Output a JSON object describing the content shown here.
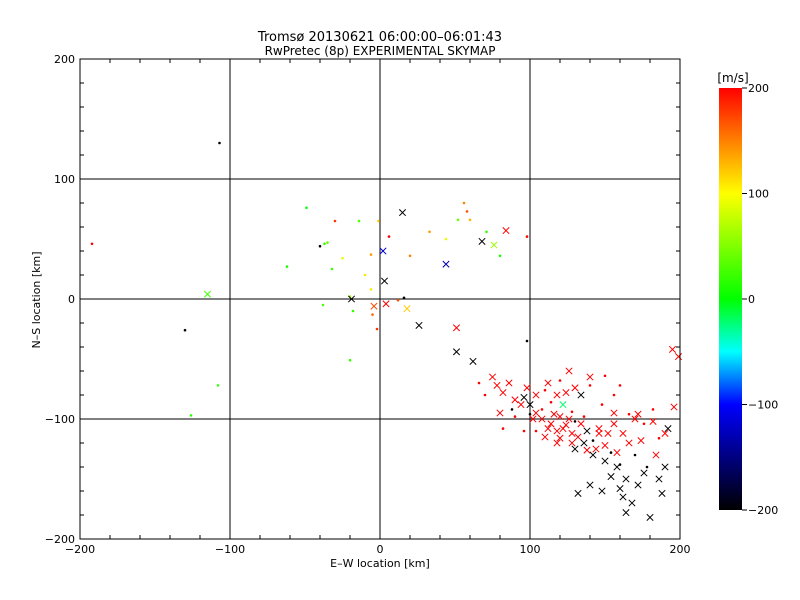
{
  "chart_data": {
    "type": "scatter",
    "title": "Tromsø 20130621 06:00:00–06:01:43",
    "subtitle": "RwPretec (8p) EXPERIMENTAL SKYMAP",
    "xlabel": "E–W location [km]",
    "ylabel": "N–S location [km]",
    "xlim": [
      -200,
      200
    ],
    "ylim": [
      -200,
      200
    ],
    "xticks": [
      "−200",
      "−100",
      "0",
      "100",
      "200"
    ],
    "yticks": [
      "−200",
      "−100",
      "0",
      "100",
      "200"
    ],
    "grid_lines_at": [
      -100,
      0,
      100
    ],
    "colorbar": {
      "label": "[m/s]",
      "range": [
        -200,
        200
      ],
      "ticks": [
        "200",
        "100",
        "0",
        "−100",
        "−200"
      ]
    },
    "points": [
      [
        -107,
        130,
        -200,
        "dot"
      ],
      [
        -192,
        46,
        200,
        "dot"
      ],
      [
        -49,
        76,
        0,
        "dot"
      ],
      [
        -62,
        27,
        10,
        "dot"
      ],
      [
        -35,
        47,
        40,
        "dot"
      ],
      [
        -30,
        65,
        180,
        "dot"
      ],
      [
        -37,
        46,
        20,
        "dot"
      ],
      [
        -40,
        44,
        -200,
        "dot"
      ],
      [
        -32,
        25,
        25,
        "dot"
      ],
      [
        -25,
        34,
        90,
        "dot"
      ],
      [
        -14,
        65,
        30,
        "dot"
      ],
      [
        -1,
        65,
        120,
        "dot"
      ],
      [
        15,
        72,
        -200,
        "cross"
      ],
      [
        2,
        40,
        -120,
        "cross"
      ],
      [
        6,
        52,
        200,
        "dot"
      ],
      [
        -6,
        37,
        140,
        "dot"
      ],
      [
        -10,
        20,
        110,
        "dot"
      ],
      [
        -6,
        8,
        110,
        "dot"
      ],
      [
        3,
        15,
        -200,
        "cross"
      ],
      [
        -20,
        2,
        60,
        "dot"
      ],
      [
        -38,
        -5,
        30,
        "dot"
      ],
      [
        -18,
        -10,
        20,
        "dot"
      ],
      [
        -20,
        -51,
        20,
        "dot"
      ],
      [
        -4,
        -6,
        170,
        "cross"
      ],
      [
        -5,
        -13,
        160,
        "dot"
      ],
      [
        -2,
        -25,
        180,
        "dot"
      ],
      [
        4,
        -4,
        200,
        "cross"
      ],
      [
        12,
        -1,
        170,
        "dot"
      ],
      [
        18,
        -8,
        120,
        "cross"
      ],
      [
        16,
        1,
        -200,
        "dot"
      ],
      [
        -19,
        0,
        -200,
        "cross"
      ],
      [
        -115,
        4,
        25,
        "cross"
      ],
      [
        -130,
        -26,
        -200,
        "dot"
      ],
      [
        -108,
        -72,
        20,
        "dot"
      ],
      [
        -126,
        -97,
        15,
        "dot"
      ],
      [
        20,
        36,
        150,
        "dot"
      ],
      [
        33,
        56,
        140,
        "dot"
      ],
      [
        44,
        50,
        90,
        "dot"
      ],
      [
        44,
        29,
        -130,
        "cross"
      ],
      [
        52,
        66,
        40,
        "dot"
      ],
      [
        56,
        80,
        150,
        "dot"
      ],
      [
        58,
        73,
        170,
        "dot"
      ],
      [
        60,
        66,
        130,
        "dot"
      ],
      [
        68,
        48,
        -200,
        "cross"
      ],
      [
        71,
        56,
        20,
        "dot"
      ],
      [
        76,
        45,
        60,
        "cross"
      ],
      [
        80,
        36,
        10,
        "dot"
      ],
      [
        84,
        57,
        200,
        "cross"
      ],
      [
        98,
        52,
        200,
        "dot"
      ],
      [
        26,
        -22,
        -200,
        "cross"
      ],
      [
        51,
        -24,
        200,
        "cross"
      ],
      [
        51,
        -44,
        -200,
        "cross"
      ],
      [
        62,
        -52,
        -200,
        "cross"
      ],
      [
        75,
        -65,
        200,
        "cross"
      ],
      [
        78,
        -72,
        200,
        "cross"
      ],
      [
        82,
        -78,
        200,
        "cross"
      ],
      [
        86,
        -70,
        200,
        "cross"
      ],
      [
        90,
        -84,
        200,
        "cross"
      ],
      [
        96,
        -82,
        -200,
        "cross"
      ],
      [
        98,
        -35,
        -200,
        "dot"
      ],
      [
        100,
        -88,
        -200,
        "cross"
      ],
      [
        104,
        -95,
        200,
        "cross"
      ],
      [
        108,
        -100,
        200,
        "cross"
      ],
      [
        112,
        -70,
        200,
        "cross"
      ],
      [
        114,
        -104,
        200,
        "cross"
      ],
      [
        118,
        -110,
        200,
        "cross"
      ],
      [
        120,
        -98,
        200,
        "cross"
      ],
      [
        122,
        -88,
        -20,
        "cross"
      ],
      [
        124,
        -105,
        200,
        "cross"
      ],
      [
        126,
        -60,
        200,
        "cross"
      ],
      [
        128,
        -112,
        200,
        "cross"
      ],
      [
        132,
        -115,
        200,
        "cross"
      ],
      [
        134,
        -80,
        -200,
        "cross"
      ],
      [
        136,
        -120,
        -200,
        "cross"
      ],
      [
        140,
        -65,
        200,
        "cross"
      ],
      [
        142,
        -130,
        -200,
        "cross"
      ],
      [
        146,
        -108,
        200,
        "cross"
      ],
      [
        150,
        -135,
        -200,
        "cross"
      ],
      [
        154,
        -148,
        -200,
        "cross"
      ],
      [
        156,
        -95,
        200,
        "cross"
      ],
      [
        158,
        -140,
        -200,
        "cross"
      ],
      [
        160,
        -158,
        -200,
        "cross"
      ],
      [
        162,
        -165,
        -200,
        "cross"
      ],
      [
        164,
        -150,
        -200,
        "cross"
      ],
      [
        166,
        -120,
        200,
        "cross"
      ],
      [
        168,
        -170,
        -200,
        "cross"
      ],
      [
        172,
        -155,
        -200,
        "cross"
      ],
      [
        176,
        -145,
        -200,
        "cross"
      ],
      [
        180,
        -182,
        -200,
        "cross"
      ],
      [
        184,
        -130,
        200,
        "cross"
      ],
      [
        186,
        -150,
        -200,
        "cross"
      ],
      [
        188,
        -162,
        -200,
        "cross"
      ],
      [
        190,
        -140,
        -200,
        "cross"
      ],
      [
        192,
        -108,
        -200,
        "cross"
      ],
      [
        195,
        -42,
        200,
        "cross"
      ],
      [
        199,
        -48,
        200,
        "cross"
      ],
      [
        196,
        -90,
        200,
        "cross"
      ],
      [
        130,
        -125,
        -200,
        "cross"
      ],
      [
        110,
        -115,
        200,
        "cross"
      ],
      [
        118,
        -120,
        200,
        "cross"
      ],
      [
        122,
        -108,
        200,
        "cross"
      ],
      [
        138,
        -110,
        -200,
        "cross"
      ],
      [
        144,
        -125,
        200,
        "cross"
      ],
      [
        152,
        -112,
        200,
        "cross"
      ],
      [
        158,
        -128,
        200,
        "cross"
      ],
      [
        170,
        -100,
        200,
        "cross"
      ],
      [
        174,
        -118,
        200,
        "cross"
      ],
      [
        148,
        -160,
        -200,
        "cross"
      ],
      [
        132,
        -162,
        -200,
        "cross"
      ],
      [
        140,
        -155,
        -200,
        "cross"
      ],
      [
        164,
        -178,
        -200,
        "cross"
      ],
      [
        104,
        -110,
        200,
        "dot"
      ],
      [
        108,
        -92,
        200,
        "dot"
      ],
      [
        114,
        -86,
        200,
        "dot"
      ],
      [
        128,
        -94,
        200,
        "dot"
      ],
      [
        136,
        -98,
        200,
        "dot"
      ],
      [
        148,
        -88,
        200,
        "dot"
      ],
      [
        156,
        -80,
        200,
        "dot"
      ],
      [
        166,
        -96,
        200,
        "dot"
      ],
      [
        176,
        -104,
        200,
        "dot"
      ],
      [
        182,
        -92,
        200,
        "dot"
      ],
      [
        186,
        -116,
        200,
        "dot"
      ],
      [
        82,
        -108,
        200,
        "dot"
      ],
      [
        90,
        -98,
        200,
        "dot"
      ],
      [
        96,
        -110,
        200,
        "dot"
      ],
      [
        110,
        -76,
        200,
        "dot"
      ],
      [
        120,
        -68,
        200,
        "dot"
      ],
      [
        140,
        -72,
        200,
        "dot"
      ],
      [
        150,
        -64,
        200,
        "dot"
      ],
      [
        160,
        -72,
        200,
        "dot"
      ],
      [
        66,
        -70,
        200,
        "dot"
      ],
      [
        70,
        -80,
        200,
        "dot"
      ],
      [
        88,
        -92,
        -200,
        "dot"
      ],
      [
        100,
        -96,
        -200,
        "dot"
      ],
      [
        130,
        -102,
        -200,
        "dot"
      ],
      [
        142,
        -118,
        -200,
        "dot"
      ],
      [
        154,
        -128,
        -200,
        "dot"
      ],
      [
        160,
        -138,
        -200,
        "dot"
      ],
      [
        170,
        -130,
        -200,
        "dot"
      ],
      [
        178,
        -140,
        -200,
        "dot"
      ],
      [
        116,
        -96,
        200,
        "cross"
      ],
      [
        126,
        -100,
        200,
        "cross"
      ],
      [
        112,
        -108,
        200,
        "cross"
      ],
      [
        102,
        -100,
        200,
        "cross"
      ],
      [
        94,
        -88,
        200,
        "cross"
      ],
      [
        80,
        -95,
        200,
        "cross"
      ],
      [
        134,
        -104,
        200,
        "cross"
      ],
      [
        146,
        -112,
        200,
        "cross"
      ],
      [
        156,
        -104,
        200,
        "cross"
      ],
      [
        162,
        -112,
        200,
        "cross"
      ],
      [
        172,
        -96,
        200,
        "cross"
      ],
      [
        182,
        -102,
        200,
        "cross"
      ],
      [
        190,
        -112,
        200,
        "cross"
      ],
      [
        120,
        -116,
        200,
        "cross"
      ],
      [
        128,
        -120,
        200,
        "cross"
      ],
      [
        150,
        -122,
        200,
        "cross"
      ],
      [
        138,
        -126,
        200,
        "cross"
      ],
      [
        124,
        -78,
        200,
        "cross"
      ],
      [
        130,
        -74,
        200,
        "cross"
      ],
      [
        118,
        -80,
        200,
        "cross"
      ],
      [
        104,
        -80,
        200,
        "cross"
      ],
      [
        98,
        -74,
        200,
        "cross"
      ]
    ]
  }
}
